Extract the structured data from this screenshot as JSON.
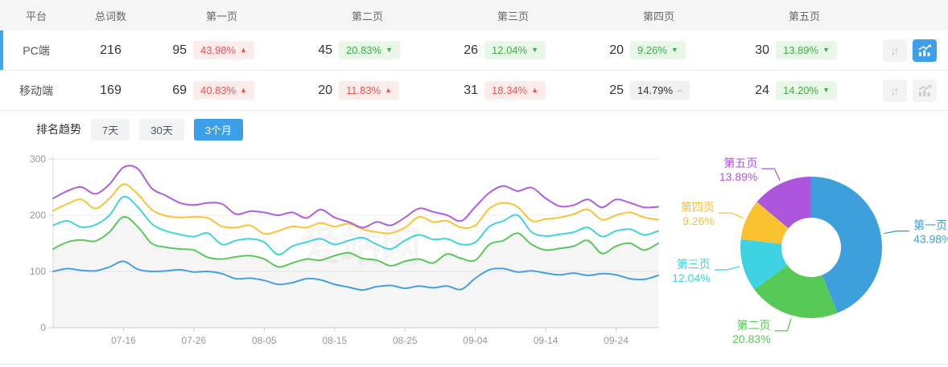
{
  "colors": {
    "accent_blue": "#3d9eea",
    "row_accent": "#3fa4f5",
    "badge_up_text": "#f15353",
    "badge_down_text": "#3cb043",
    "header_bg": "#f5f5f5",
    "series": {
      "page1": "#479fe0",
      "page2": "#5cc75a",
      "page3": "#41d2e4",
      "page4": "#fac336",
      "page5": "#b05ede"
    }
  },
  "icons": {
    "sort_icon": "↓↑",
    "trend_icon": "chart-line-bars"
  },
  "table": {
    "headers": [
      "平台",
      "总词数",
      "第一页",
      "第二页",
      "第三页",
      "第四页",
      "第五页"
    ],
    "rows": [
      {
        "platform": "PC端",
        "total": "216",
        "pages": [
          {
            "count": "95",
            "pct": "43.98%",
            "dir": "up"
          },
          {
            "count": "45",
            "pct": "20.83%",
            "dir": "down"
          },
          {
            "count": "26",
            "pct": "12.04%",
            "dir": "down"
          },
          {
            "count": "20",
            "pct": "9.26%",
            "dir": "down"
          },
          {
            "count": "30",
            "pct": "13.89%",
            "dir": "down"
          }
        ],
        "trend_active": true
      },
      {
        "platform": "移动端",
        "total": "169",
        "pages": [
          {
            "count": "69",
            "pct": "40.83%",
            "dir": "up"
          },
          {
            "count": "20",
            "pct": "11.83%",
            "dir": "up"
          },
          {
            "count": "31",
            "pct": "18.34%",
            "dir": "up"
          },
          {
            "count": "25",
            "pct": "14.79%",
            "dir": "flat"
          },
          {
            "count": "24",
            "pct": "14.20%",
            "dir": "down"
          }
        ],
        "trend_active": false
      }
    ]
  },
  "trend": {
    "label": "排名趋势",
    "tabs": [
      {
        "label": "7天",
        "active": false
      },
      {
        "label": "30天",
        "active": false
      },
      {
        "label": "3个月",
        "active": true
      }
    ]
  },
  "watermark": "爱站网",
  "chart_data": [
    {
      "type": "line",
      "title": "排名趋势 3个月",
      "ylim": [
        0,
        300
      ],
      "yticks": [
        0,
        100,
        200,
        300
      ],
      "grid": true,
      "x_span_days": 86,
      "x_ticks": [
        {
          "day": 10,
          "label": "07-16"
        },
        {
          "day": 20,
          "label": "07-26"
        },
        {
          "day": 30,
          "label": "08-05"
        },
        {
          "day": 40,
          "label": "08-15"
        },
        {
          "day": 50,
          "label": "08-25"
        },
        {
          "day": 60,
          "label": "09-04"
        },
        {
          "day": 70,
          "label": "09-14"
        },
        {
          "day": 80,
          "label": "09-24"
        }
      ],
      "x_step_days": 2,
      "area_fill_series": "第二页",
      "series": [
        {
          "name": "第一页",
          "color": "#479fe0",
          "values": [
            100,
            105,
            102,
            101,
            108,
            118,
            104,
            100,
            101,
            103,
            99,
            100,
            96,
            87,
            88,
            84,
            77,
            80,
            87,
            85,
            77,
            72,
            67,
            73,
            75,
            70,
            74,
            71,
            74,
            68,
            88,
            103,
            105,
            99,
            101,
            97,
            94,
            97,
            93,
            96,
            94,
            87,
            86,
            93
          ]
        },
        {
          "name": "第二页",
          "color": "#5cc75a",
          "values": [
            140,
            152,
            156,
            154,
            170,
            197,
            180,
            150,
            143,
            140,
            138,
            125,
            122,
            126,
            128,
            122,
            108,
            115,
            122,
            120,
            128,
            133,
            123,
            120,
            110,
            118,
            122,
            115,
            131,
            123,
            120,
            148,
            155,
            168,
            148,
            138,
            141,
            145,
            155,
            132,
            145,
            150,
            138,
            150
          ]
        },
        {
          "name": "第三页",
          "color": "#41d2e4",
          "values": [
            182,
            190,
            179,
            183,
            200,
            233,
            215,
            185,
            172,
            166,
            162,
            168,
            148,
            155,
            158,
            152,
            130,
            145,
            152,
            158,
            148,
            155,
            160,
            148,
            140,
            155,
            165,
            157,
            158,
            148,
            152,
            180,
            190,
            200,
            170,
            163,
            166,
            170,
            178,
            162,
            172,
            175,
            165,
            172
          ]
        },
        {
          "name": "第四页",
          "color": "#fac336",
          "values": [
            208,
            220,
            228,
            212,
            230,
            255,
            238,
            210,
            199,
            196,
            197,
            195,
            180,
            178,
            182,
            167,
            172,
            180,
            178,
            186,
            180,
            185,
            175,
            170,
            168,
            178,
            197,
            188,
            190,
            178,
            182,
            212,
            222,
            215,
            190,
            193,
            196,
            202,
            210,
            192,
            200,
            205,
            196,
            192
          ]
        },
        {
          "name": "第五页",
          "color": "#b05ede",
          "values": [
            230,
            243,
            250,
            238,
            255,
            285,
            283,
            248,
            235,
            222,
            218,
            222,
            220,
            202,
            207,
            205,
            200,
            205,
            195,
            210,
            196,
            188,
            178,
            188,
            182,
            196,
            212,
            206,
            200,
            190,
            215,
            240,
            252,
            243,
            249,
            230,
            216,
            218,
            228,
            214,
            228,
            222,
            214,
            215
          ]
        }
      ]
    },
    {
      "type": "pie",
      "donut": true,
      "labels": [
        "第一页",
        "第二页",
        "第三页",
        "第四页",
        "第五页"
      ],
      "values": [
        43.98,
        20.83,
        12.04,
        9.26,
        13.89
      ],
      "pct_labels": [
        "43.98%",
        "20.83%",
        "12.04%",
        "9.26%",
        "13.89%"
      ],
      "colors": [
        "#3d9fdb",
        "#56c956",
        "#3fd2e3",
        "#fac231",
        "#ad55dc"
      ]
    }
  ]
}
